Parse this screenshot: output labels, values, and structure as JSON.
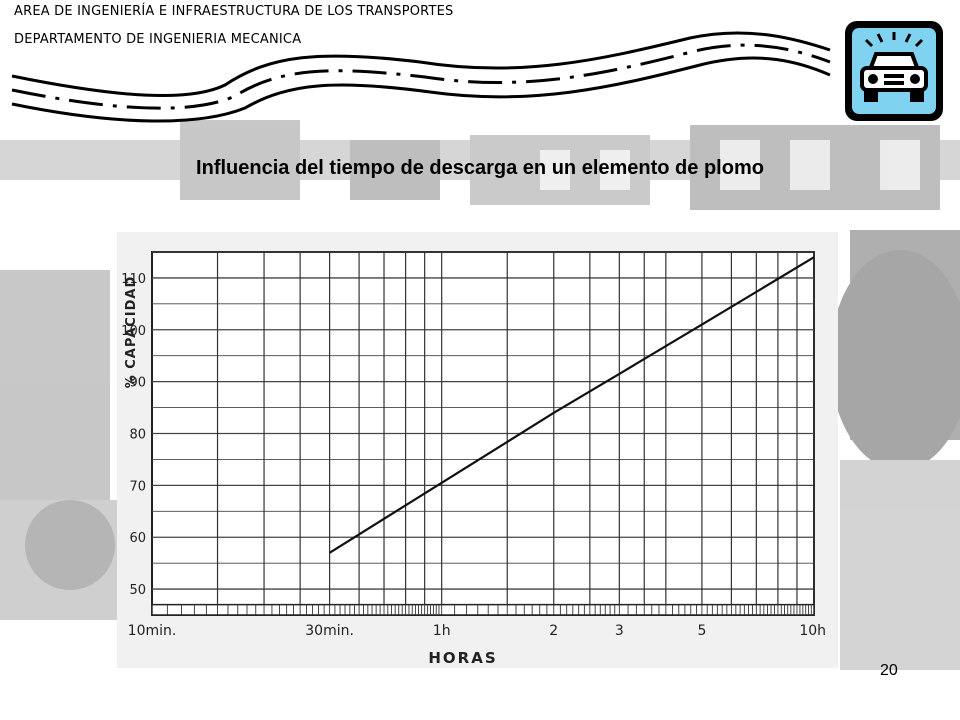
{
  "header": {
    "line1": "AREA DE INGENIERÍA E INFRAESTRUCTURA DE LOS TRANSPORTES",
    "line2": "DEPARTAMENTO DE INGENIERIA MECANICA",
    "logo_icon": "car-warning-icon",
    "logo_color": "#7fd3f0"
  },
  "slide": {
    "title": "Influencia del tiempo de descarga en un elemento de plomo",
    "page_number": "20"
  },
  "chart_data": {
    "type": "line",
    "title": "",
    "xlabel": "HORAS",
    "ylabel": "% CAPACIDAD",
    "x_scale": "log",
    "x_unit": "hours",
    "xlim": [
      0.1667,
      10
    ],
    "ylim": [
      45,
      115
    ],
    "grid": true,
    "x_ticks": [
      {
        "value": 0.1667,
        "label": "10min."
      },
      {
        "value": 0.5,
        "label": "30min."
      },
      {
        "value": 1,
        "label": "1h"
      },
      {
        "value": 2,
        "label": "2"
      },
      {
        "value": 3,
        "label": "3"
      },
      {
        "value": 5,
        "label": "5"
      },
      {
        "value": 10,
        "label": "10h"
      }
    ],
    "y_ticks": [
      50,
      60,
      70,
      80,
      90,
      100,
      110
    ],
    "series": [
      {
        "x": [
          0.5,
          1,
          2,
          3,
          5,
          10
        ],
        "y": [
          57,
          70.5,
          84,
          91.5,
          101,
          114
        ]
      }
    ]
  }
}
